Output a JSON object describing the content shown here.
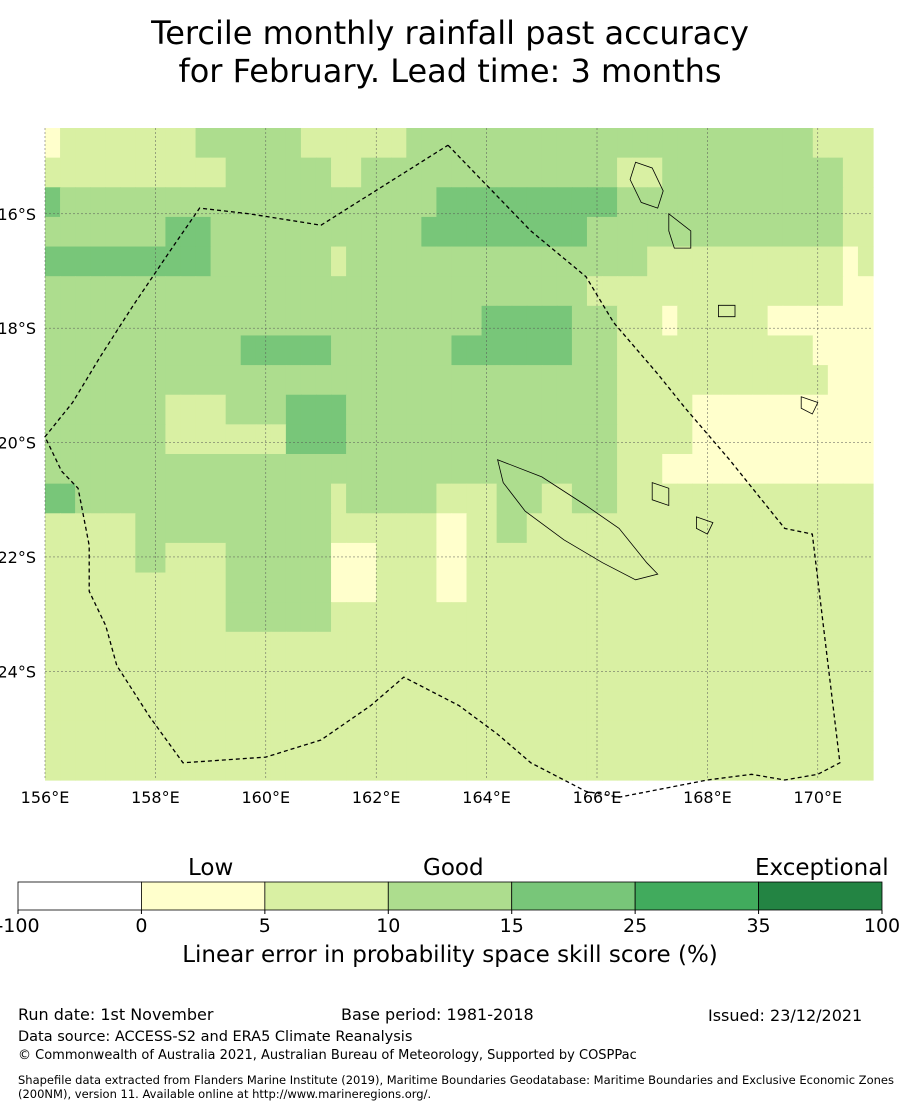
{
  "title": {
    "line1": "Tercile monthly rainfall past accuracy",
    "line2": "for February. Lead time: 3 months"
  },
  "map": {
    "lon_min": 156.0,
    "lon_max": 171.0,
    "lat_min": -25.9,
    "lat_max": -14.5,
    "cell_size_deg": 0.833,
    "lat_labels": [
      "16°S",
      "18°S",
      "20°S",
      "22°S",
      "24°S"
    ],
    "lat_values": [
      -16,
      -18,
      -20,
      -22,
      -24
    ],
    "lon_labels": [
      "156°E",
      "158°E",
      "160°E",
      "162°E",
      "164°E",
      "166°E",
      "168°E",
      "170°E"
    ],
    "lon_values": [
      156,
      158,
      160,
      162,
      164,
      166,
      168,
      170
    ],
    "skill_grid": [
      "1222222222333333322222223333333333333333333333333332222",
      "2222222222223333333223333333333333333322233333333333322",
      "4333333333333333333333333344444444444433333333333333322",
      "3333333344433333333333333444444444443333333333333333322",
      "4444444444433333333233333333333333333333222222222222212",
      "3333333333333333333333333333333333332222222222222222211",
      "3333333333333333333333333333344444433322212222221111111",
      "3333333333333444444333333334444444433322222222222221111",
      "3333333333333333333333333333333333333322222222222222111",
      "3333333322223333444433333333333333333322222111111111111",
      "3333333322222222444433333333333333333322222111111111111",
      "3333333333333333333333333333333333333322211111111111111",
      "4433333333333333333233333322223332233322222222222222222",
      "2222223333333333333222222211223322222222222222222222222",
      "2222223322223333333111222211222222222222222222222222222",
      "2222222222223333333111222211222222222222222222222222222",
      "2222222222223333333222222222222222222222222222222222222",
      "2222222222222222222222222222222222222222222222222222222",
      "2222222222222222222222222222222222222222222222222222222",
      "2222222222222222222222222222222222222222222222222222222",
      "2222222222222222222222222222222222222222222222222222222",
      "2222222222222222222222222222222222222222222222222222222"
    ],
    "skill_grid_note": "class index per cell: 0=-100..0, 1=0..5, 2=5..10, 3=10..15, 4=15..25, 5=25..35, 6=35..100",
    "boundary_path_lonlat": [
      [
        163.3,
        -14.8
      ],
      [
        164.8,
        -16.3
      ],
      [
        165.8,
        -17.1
      ],
      [
        166.3,
        -17.9
      ],
      [
        167.1,
        -18.8
      ],
      [
        167.6,
        -19.4
      ],
      [
        168.4,
        -20.3
      ],
      [
        169.4,
        -21.5
      ],
      [
        169.9,
        -21.6
      ],
      [
        170.4,
        -25.6
      ],
      [
        170.0,
        -25.8
      ],
      [
        169.4,
        -25.9
      ],
      [
        168.8,
        -25.8
      ],
      [
        168.0,
        -25.9
      ],
      [
        166.4,
        -26.2
      ],
      [
        165.8,
        -26.1
      ],
      [
        164.8,
        -25.6
      ],
      [
        164.2,
        -25.1
      ],
      [
        163.5,
        -24.6
      ],
      [
        162.5,
        -24.1
      ],
      [
        161.9,
        -24.6
      ],
      [
        161.0,
        -25.2
      ],
      [
        160.0,
        -25.5
      ],
      [
        158.5,
        -25.6
      ],
      [
        157.9,
        -24.8
      ],
      [
        157.3,
        -23.9
      ],
      [
        157.1,
        -23.2
      ],
      [
        156.8,
        -22.6
      ],
      [
        156.8,
        -21.8
      ],
      [
        156.6,
        -20.8
      ],
      [
        156.3,
        -20.5
      ],
      [
        156.0,
        -19.9
      ],
      [
        156.5,
        -19.3
      ],
      [
        157.0,
        -18.5
      ],
      [
        157.6,
        -17.6
      ],
      [
        158.3,
        -16.6
      ],
      [
        158.8,
        -15.9
      ],
      [
        159.7,
        -16.0
      ],
      [
        161.0,
        -16.2
      ],
      [
        163.3,
        -14.8
      ]
    ],
    "islands": [
      {
        "name": "New Caledonia",
        "lonlat": [
          [
            164.2,
            -20.3
          ],
          [
            165.0,
            -20.6
          ],
          [
            165.8,
            -21.1
          ],
          [
            166.4,
            -21.5
          ],
          [
            166.9,
            -22.1
          ],
          [
            167.1,
            -22.3
          ],
          [
            166.7,
            -22.4
          ],
          [
            166.1,
            -22.1
          ],
          [
            165.4,
            -21.7
          ],
          [
            164.7,
            -21.2
          ],
          [
            164.3,
            -20.7
          ]
        ]
      },
      {
        "name": "Vanuatu Espiritu Santo",
        "lonlat": [
          [
            166.7,
            -15.1
          ],
          [
            167.0,
            -15.2
          ],
          [
            167.2,
            -15.6
          ],
          [
            167.1,
            -15.9
          ],
          [
            166.8,
            -15.8
          ],
          [
            166.6,
            -15.4
          ]
        ]
      },
      {
        "name": "Vanuatu Malekula",
        "lonlat": [
          [
            167.3,
            -16.0
          ],
          [
            167.7,
            -16.3
          ],
          [
            167.7,
            -16.6
          ],
          [
            167.4,
            -16.6
          ],
          [
            167.3,
            -16.3
          ]
        ]
      },
      {
        "name": "Vanuatu Efate",
        "lonlat": [
          [
            168.2,
            -17.6
          ],
          [
            168.5,
            -17.6
          ],
          [
            168.5,
            -17.8
          ],
          [
            168.2,
            -17.8
          ]
        ]
      },
      {
        "name": "Lifou",
        "lonlat": [
          [
            167.0,
            -20.7
          ],
          [
            167.3,
            -20.8
          ],
          [
            167.3,
            -21.1
          ],
          [
            167.0,
            -21.0
          ]
        ]
      },
      {
        "name": "Mare",
        "lonlat": [
          [
            167.8,
            -21.3
          ],
          [
            168.1,
            -21.4
          ],
          [
            168.0,
            -21.6
          ],
          [
            167.8,
            -21.5
          ]
        ]
      },
      {
        "name": "Aneityum",
        "lonlat": [
          [
            169.7,
            -19.2
          ],
          [
            170.0,
            -19.3
          ],
          [
            169.9,
            -19.5
          ],
          [
            169.7,
            -19.4
          ]
        ]
      }
    ]
  },
  "colorbar": {
    "headings": {
      "low": "Low",
      "good": "Good",
      "exceptional": "Exceptional"
    },
    "ticks": [
      "-100",
      "0",
      "5",
      "10",
      "15",
      "25",
      "35",
      "100"
    ],
    "colors": [
      "#ffffff",
      "#ffffcc",
      "#d9f0a3",
      "#addd8e",
      "#78c679",
      "#41ab5d",
      "#238443"
    ],
    "label": "Linear error in probability space skill score (%)"
  },
  "footer": {
    "run_date": "Run date: 1st November",
    "base_period": "Base period: 1981-2018",
    "issued": "Issued: 23/12/2021",
    "data_source": "Data source: ACCESS-S2 and ERA5 Climate Reanalysis",
    "copyright": "© Commonwealth of Australia 2021, Australian Bureau of Meteorology, Supported by COSPPac",
    "shapefile": "Shapefile data extracted from Flanders Marine Institute (2019), Maritime Boundaries Geodatabase: Maritime Boundaries and Exclusive Economic Zones (200NM), version 11. Available online at http://www.marineregions.org/."
  }
}
